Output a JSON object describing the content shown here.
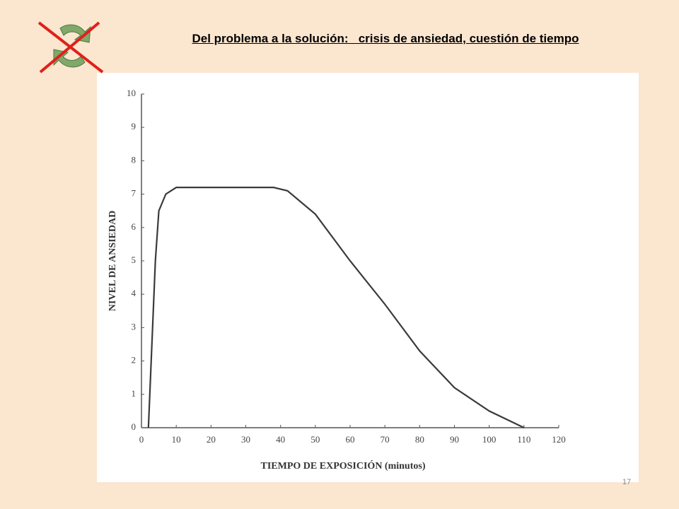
{
  "slide": {
    "title": "Del problema a la solución:   crisis de ansiedad, cuestión de tiempo",
    "page_number": "17"
  },
  "chart_data": {
    "type": "line",
    "x_label": "TIEMPO DE EXPOSICIÓN (minutos)",
    "y_label": "NIVEL DE ANSIEDAD",
    "x": [
      2,
      3,
      4,
      5,
      7,
      10,
      20,
      30,
      38,
      42,
      50,
      60,
      70,
      80,
      90,
      100,
      110
    ],
    "series": [
      {
        "color": "#3a3a3a",
        "values": [
          0,
          2.5,
          5,
          6.5,
          7,
          7.2,
          7.2,
          7.2,
          7.2,
          7.1,
          6.4,
          5.0,
          3.7,
          2.3,
          1.2,
          0.5,
          0
        ]
      }
    ],
    "xlim": [
      0,
      120
    ],
    "xticks": [
      0,
      10,
      20,
      30,
      40,
      50,
      60,
      70,
      80,
      90,
      100,
      110,
      120
    ],
    "ylim": [
      0,
      10
    ],
    "yticks": [
      0,
      1,
      2,
      3,
      4,
      5,
      6,
      7,
      8,
      9,
      10
    ]
  }
}
